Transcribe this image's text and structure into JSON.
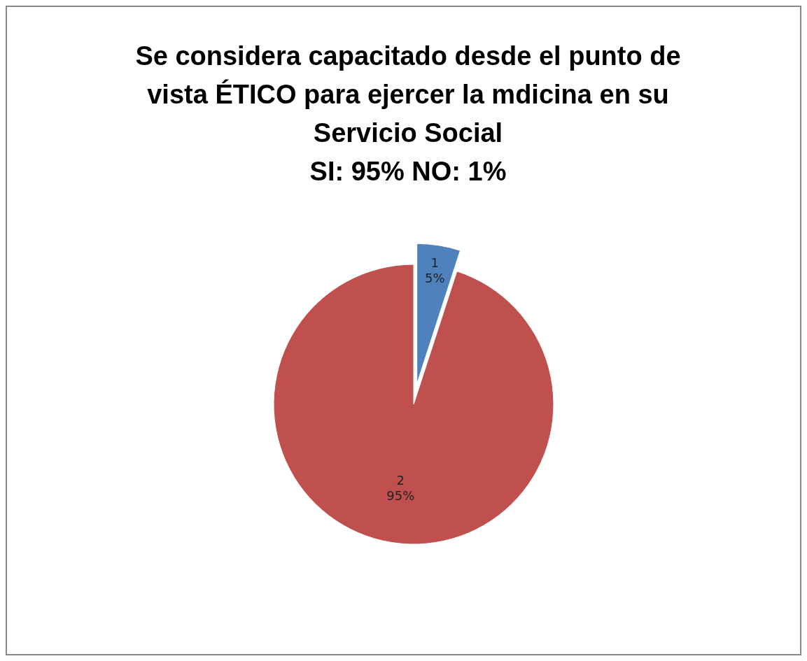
{
  "chart_data": {
    "type": "pie",
    "title": "Se considera capacitado desde el punto de vista ÉTICO para ejercer la mdicina en su Servicio Social",
    "subtitle": "SI: 95%     NO: 1%",
    "categories": [
      "1",
      "2"
    ],
    "values": [
      5,
      95
    ],
    "colors": [
      "#4f81bd",
      "#c0504d"
    ],
    "value_labels": [
      "5%",
      "95%"
    ]
  }
}
